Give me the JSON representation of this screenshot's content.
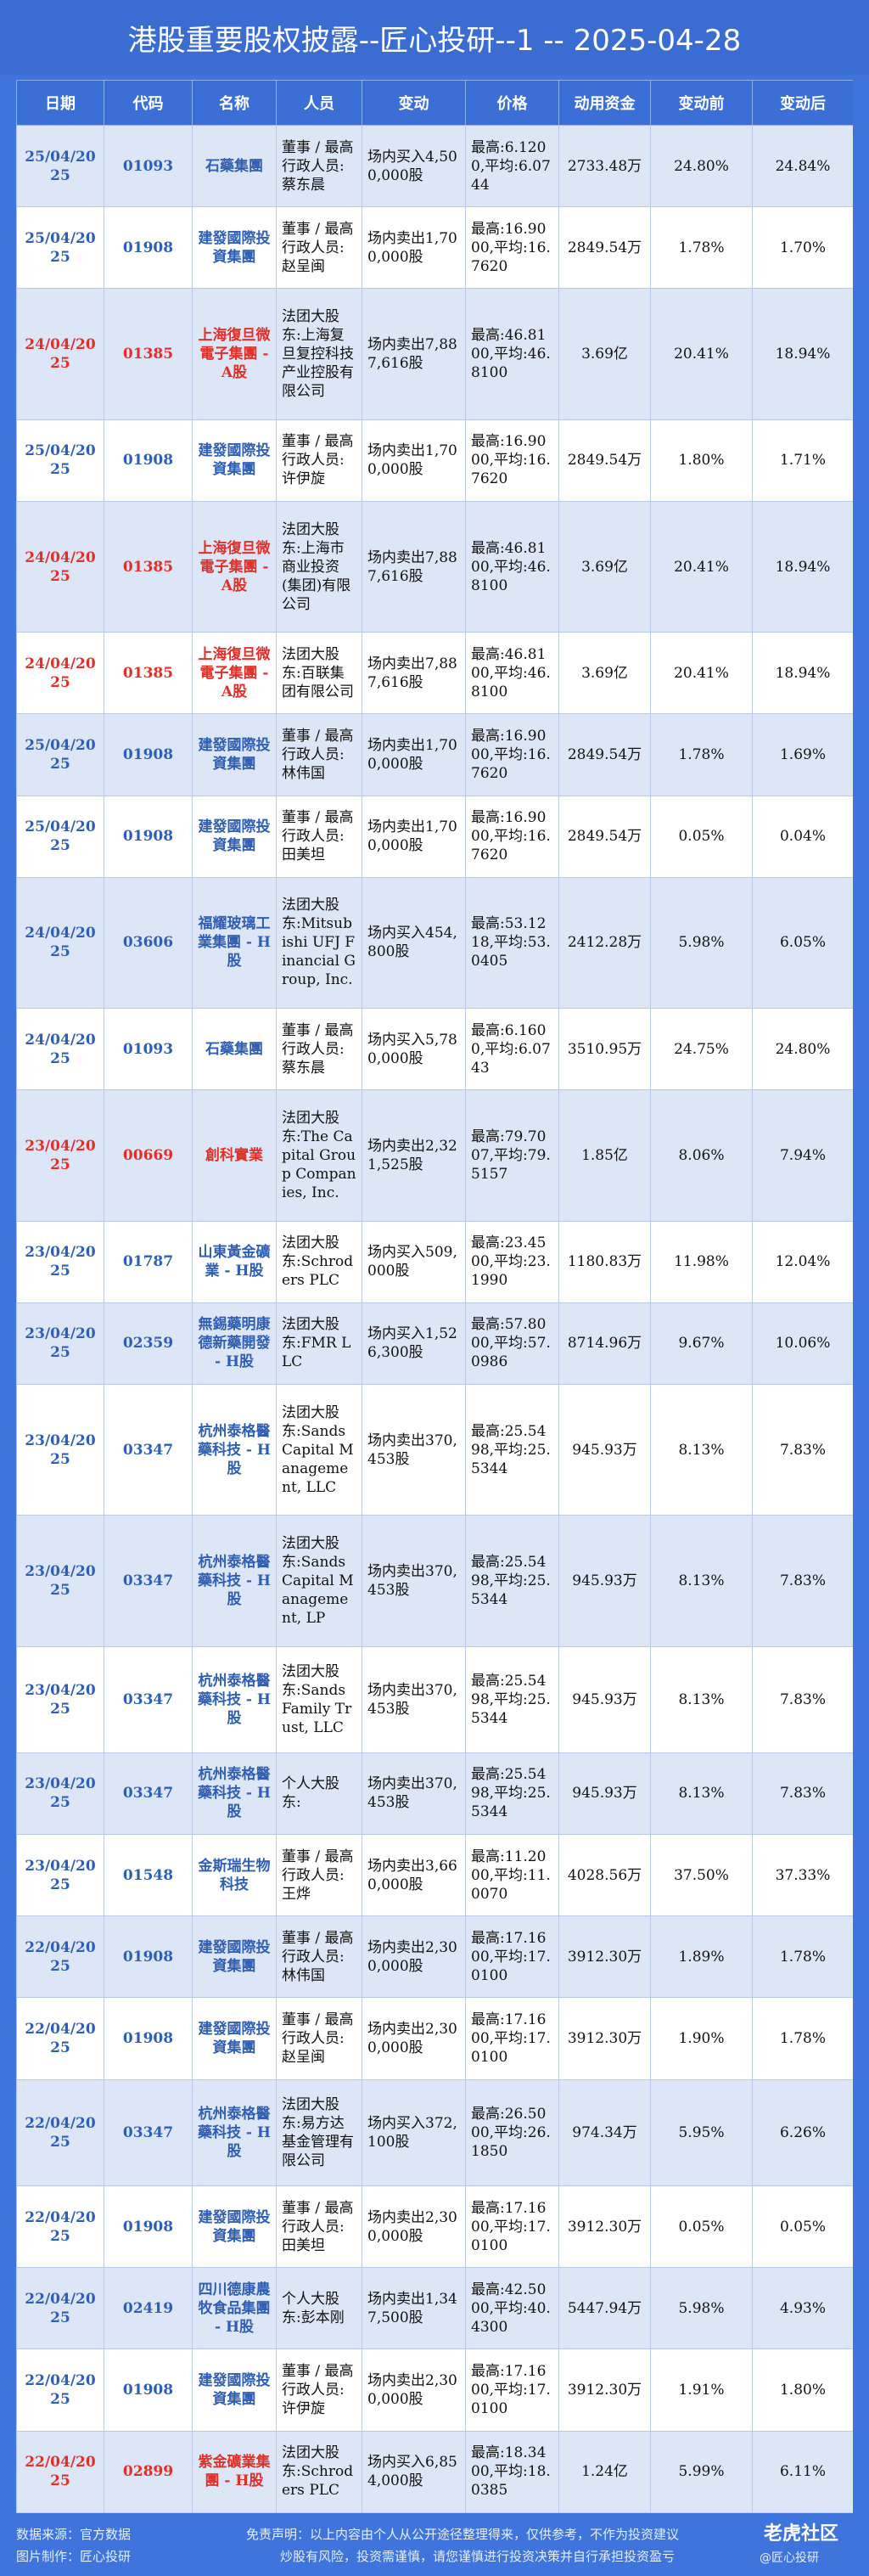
{
  "header": {
    "title": "港股重要股权披露--匠心投研--1 -- 2025-04-28"
  },
  "table": {
    "headers": [
      "日期",
      "代码",
      "名称",
      "人员",
      "变动",
      "价格",
      "动用资金",
      "变动前",
      "变动后"
    ],
    "rows": [
      {
        "cells": [
          "25/04/2025",
          "01093",
          "石藥集團",
          "董事 / 最高行政人员:蔡东晨",
          "场内买入4,500,000股",
          "最高:6.1200,平均:6.0744",
          "2733.48万",
          "24.80%",
          "24.84%"
        ],
        "color": "#2f5fb5"
      },
      {
        "cells": [
          "25/04/2025",
          "01908",
          "建發國際投資集團",
          "董事 / 最高行政人员:赵呈闽",
          "场内卖出1,700,000股",
          "最高:16.9000,平均:16.7620",
          "2849.54万",
          "1.78%",
          "1.70%"
        ],
        "color": "#2f5fb5"
      },
      {
        "cells": [
          "24/04/2025",
          "01385",
          "上海復旦微電子集團 - A股",
          "法团大股东:上海复旦复控科技产业控股有限公司",
          "场内卖出7,887,616股",
          "最高:46.8100,平均:46.8100",
          "3.69亿",
          "20.41%",
          "18.94%"
        ],
        "color": "#e0302a"
      },
      {
        "cells": [
          "25/04/2025",
          "01908",
          "建發國際投資集團",
          "董事 / 最高行政人员:许伊旋",
          "场内卖出1,700,000股",
          "最高:16.9000,平均:16.7620",
          "2849.54万",
          "1.80%",
          "1.71%"
        ],
        "color": "#2f5fb5"
      },
      {
        "cells": [
          "24/04/2025",
          "01385",
          "上海復旦微電子集團 - A股",
          "法团大股东:上海市商业投资(集团)有限公司",
          "场内卖出7,887,616股",
          "最高:46.8100,平均:46.8100",
          "3.69亿",
          "20.41%",
          "18.94%"
        ],
        "color": "#e0302a"
      },
      {
        "cells": [
          "24/04/2025",
          "01385",
          "上海復旦微電子集團 - A股",
          "法团大股东:百联集团有限公司",
          "场内卖出7,887,616股",
          "最高:46.8100,平均:46.8100",
          "3.69亿",
          "20.41%",
          "18.94%"
        ],
        "color": "#e0302a"
      },
      {
        "cells": [
          "25/04/2025",
          "01908",
          "建發國際投資集團",
          "董事 / 最高行政人员:林伟国",
          "场内卖出1,700,000股",
          "最高:16.9000,平均:16.7620",
          "2849.54万",
          "1.78%",
          "1.69%"
        ],
        "color": "#2f5fb5"
      },
      {
        "cells": [
          "25/04/2025",
          "01908",
          "建發國際投資集團",
          "董事 / 最高行政人员:田美坦",
          "场内卖出1,700,000股",
          "最高:16.9000,平均:16.7620",
          "2849.54万",
          "0.05%",
          "0.04%"
        ],
        "color": "#2f5fb5"
      },
      {
        "cells": [
          "24/04/2025",
          "03606",
          "福耀玻璃工業集團 - H股",
          "法团大股东:Mitsubishi UFJ Financial Group, Inc.",
          "场内买入454,800股",
          "最高:53.1218,平均:53.0405",
          "2412.28万",
          "5.98%",
          "6.05%"
        ],
        "color": "#2f5fb5"
      },
      {
        "cells": [
          "24/04/2025",
          "01093",
          "石藥集團",
          "董事 / 最高行政人员:蔡东晨",
          "场内买入5,780,000股",
          "最高:6.1600,平均:6.0743",
          "3510.95万",
          "24.75%",
          "24.80%"
        ],
        "color": "#2f5fb5"
      },
      {
        "cells": [
          "23/04/2025",
          "00669",
          "創科實業",
          "法团大股东:The Capital Group Companies, Inc.",
          "场内卖出2,321,525股",
          "最高:79.7007,平均:79.5157",
          "1.85亿",
          "8.06%",
          "7.94%"
        ],
        "color": "#e0302a"
      },
      {
        "cells": [
          "23/04/2025",
          "01787",
          "山東黃金礦業 - H股",
          "法团大股东:Schroders PLC",
          "场内买入509,000股",
          "最高:23.4500,平均:23.1990",
          "1180.83万",
          "11.98%",
          "12.04%"
        ],
        "color": "#2f5fb5"
      },
      {
        "cells": [
          "23/04/2025",
          "02359",
          "無錫藥明康德新藥開發 - H股",
          "法团大股东:FMR LLC",
          "场内买入1,526,300股",
          "最高:57.8000,平均:57.0986",
          "8714.96万",
          "9.67%",
          "10.06%"
        ],
        "color": "#2f5fb5"
      },
      {
        "cells": [
          "23/04/2025",
          "03347",
          "杭州泰格醫藥科技 - H股",
          "法团大股东:Sands Capital Management, LLC",
          "场内卖出370,453股",
          "最高:25.5498,平均:25.5344",
          "945.93万",
          "8.13%",
          "7.83%"
        ],
        "color": "#2f5fb5"
      },
      {
        "cells": [
          "23/04/2025",
          "03347",
          "杭州泰格醫藥科技 - H股",
          "法团大股东:Sands Capital Management, LP",
          "场内卖出370,453股",
          "最高:25.5498,平均:25.5344",
          "945.93万",
          "8.13%",
          "7.83%"
        ],
        "color": "#2f5fb5"
      },
      {
        "cells": [
          "23/04/2025",
          "03347",
          "杭州泰格醫藥科技 - H股",
          "法团大股东:Sands Family Trust, LLC",
          "场内卖出370,453股",
          "最高:25.5498,平均:25.5344",
          "945.93万",
          "8.13%",
          "7.83%"
        ],
        "color": "#2f5fb5"
      },
      {
        "cells": [
          "23/04/2025",
          "03347",
          "杭州泰格醫藥科技 - H股",
          "个人大股东:",
          "场内卖出370,453股",
          "最高:25.5498,平均:25.5344",
          "945.93万",
          "8.13%",
          "7.83%"
        ],
        "color": "#2f5fb5"
      },
      {
        "cells": [
          "23/04/2025",
          "01548",
          "金斯瑞生物科技",
          "董事 / 最高行政人员:王烨",
          "场内卖出3,660,000股",
          "最高:11.2000,平均:11.0070",
          "4028.56万",
          "37.50%",
          "37.33%"
        ],
        "color": "#2f5fb5"
      },
      {
        "cells": [
          "22/04/2025",
          "01908",
          "建發國際投資集團",
          "董事 / 最高行政人员:林伟国",
          "场内卖出2,300,000股",
          "最高:17.1600,平均:17.0100",
          "3912.30万",
          "1.89%",
          "1.78%"
        ],
        "color": "#2f5fb5"
      },
      {
        "cells": [
          "22/04/2025",
          "01908",
          "建發國際投資集團",
          "董事 / 最高行政人员:赵呈闽",
          "场内卖出2,300,000股",
          "最高:17.1600,平均:17.0100",
          "3912.30万",
          "1.90%",
          "1.78%"
        ],
        "color": "#2f5fb5"
      },
      {
        "cells": [
          "22/04/2025",
          "03347",
          "杭州泰格醫藥科技 - H股",
          "法团大股东:易方达基金管理有限公司",
          "场内买入372,100股",
          "最高:26.5000,平均:26.1850",
          "974.34万",
          "5.95%",
          "6.26%"
        ],
        "color": "#2f5fb5"
      },
      {
        "cells": [
          "22/04/2025",
          "01908",
          "建發國際投資集團",
          "董事 / 最高行政人员:田美坦",
          "场内卖出2,300,000股",
          "最高:17.1600,平均:17.0100",
          "3912.30万",
          "0.05%",
          "0.05%"
        ],
        "color": "#2f5fb5"
      },
      {
        "cells": [
          "22/04/2025",
          "02419",
          "四川德康農牧食品集團 - H股",
          "个人大股东:彭本刚",
          "场内卖出1,347,500股",
          "最高:42.5000,平均:40.4300",
          "5447.94万",
          "5.98%",
          "4.93%"
        ],
        "color": "#2f5fb5"
      },
      {
        "cells": [
          "22/04/2025",
          "01908",
          "建發國際投資集團",
          "董事 / 最高行政人员:许伊旋",
          "场内卖出2,300,000股",
          "最高:17.1600,平均:17.0100",
          "3912.30万",
          "1.91%",
          "1.80%"
        ],
        "color": "#2f5fb5"
      },
      {
        "cells": [
          "22/04/2025",
          "02899",
          "紫金礦業集團 - H股",
          "法团大股东:Schroders PLC",
          "场内买入6,854,000股",
          "最高:18.3400,平均:18.0385",
          "1.24亿",
          "5.99%",
          "6.11%"
        ],
        "color": "#e0302a"
      }
    ]
  },
  "footer": {
    "source": "数据来源：官方数据",
    "maker": "图片制作：匠心投研",
    "disclaimer": "免责声明：以上内容由个人从公开途径整理得来，仅供参考，不作为投资建议",
    "risk": "炒股有风险，投资需谨慎，请您谨慎进行投资决策并自行承担投资盈亏",
    "brand": "老虎社区",
    "handle": "@匠心投研"
  }
}
